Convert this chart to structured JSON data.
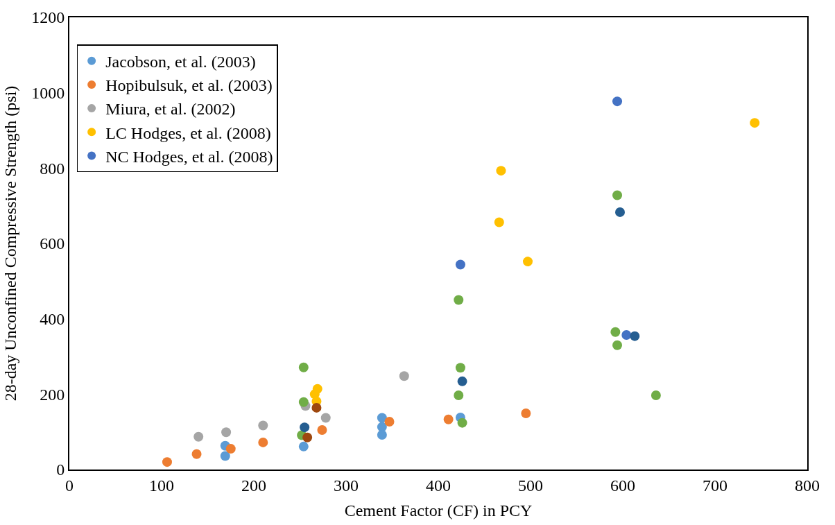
{
  "chart_data": {
    "type": "scatter",
    "xlabel": "Cement Factor (CF) in PCY",
    "ylabel": "28-day Unconfined Compressive Strength (psi)",
    "xlim": [
      0,
      800
    ],
    "xticks": [
      0,
      100,
      200,
      300,
      400,
      500,
      600,
      700,
      800
    ],
    "ylim": [
      0,
      1200
    ],
    "yticks": [
      0,
      200,
      400,
      600,
      800,
      1000,
      1200
    ],
    "legend": "top left",
    "marker": "circle",
    "series": [
      {
        "name": "Jacobson, et al. (2003)",
        "color": "#5b9bd5",
        "x": [
          169,
          169,
          254,
          339,
          339,
          339,
          424
        ],
        "values": [
          63,
          36,
          61,
          137,
          113,
          92,
          138
        ]
      },
      {
        "name": "Hopibulsuk, et al. (2003)",
        "color": "#ed7d31",
        "x": [
          106,
          138,
          175,
          210,
          274,
          347,
          411,
          495
        ],
        "values": [
          20,
          41,
          55,
          72,
          105,
          127,
          133,
          149
        ]
      },
      {
        "name": "Miura, et al. (2002)",
        "color": "#a5a5a5",
        "x": [
          140,
          170,
          210,
          256,
          278,
          363
        ],
        "values": [
          87,
          99,
          117,
          169,
          137,
          248
        ]
      },
      {
        "name": "LC Hodges, et al. (2008)",
        "color": "#ffc000",
        "x": [
          266,
          268,
          269,
          466,
          468,
          497,
          743
        ],
        "values": [
          200,
          181,
          214,
          656,
          793,
          552,
          920
        ]
      },
      {
        "name": "NC Hodges, et al. (2008)",
        "color": "#4472c4",
        "x": [
          424,
          594,
          604
        ],
        "values": [
          544,
          977,
          357
        ]
      },
      {
        "color": "#70ad47",
        "x": [
          252,
          254,
          254,
          422,
          422,
          424,
          426,
          592,
          594,
          594,
          636
        ],
        "values": [
          91,
          179,
          271,
          197,
          450,
          270,
          124,
          365,
          330,
          728,
          197
        ]
      },
      {
        "color": "#255e91",
        "x": [
          255,
          426,
          597,
          613
        ],
        "values": [
          112,
          234,
          683,
          354
        ]
      },
      {
        "color": "#9e480e",
        "x": [
          258,
          268
        ],
        "values": [
          85,
          164
        ]
      }
    ]
  }
}
